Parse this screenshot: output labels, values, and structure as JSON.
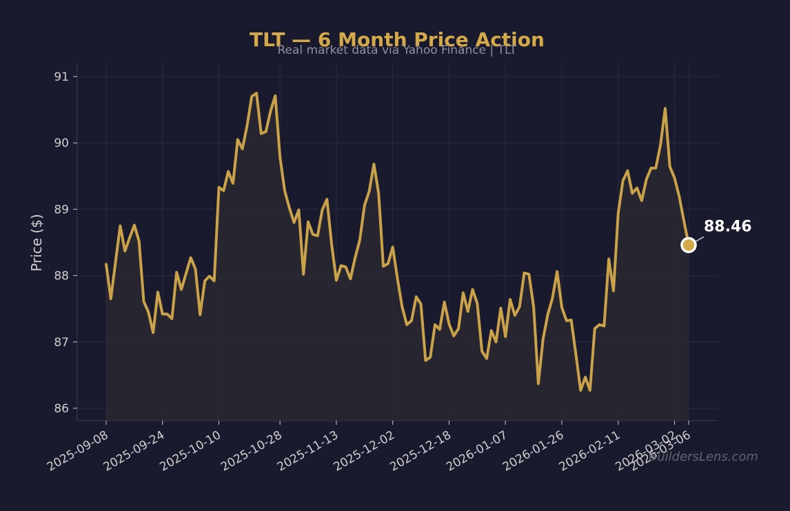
{
  "chart_data": {
    "type": "area",
    "title": "TLT — 6 Month Price Action",
    "subtitle": "Real market data via Yahoo Finance | TLT",
    "xlabel": "",
    "ylabel": "Price ($)",
    "ylim": [
      85.8,
      91.2
    ],
    "yticks": [
      86,
      87,
      88,
      89,
      90,
      91
    ],
    "xtick_labels": [
      "2025-09-08",
      "2025-09-24",
      "2025-10-10",
      "2025-10-28",
      "2025-11-13",
      "2025-12-02",
      "2025-12-18",
      "2026-01-07",
      "2026-01-26",
      "2026-02-11",
      "2026-03-02",
      "2026-03-06"
    ],
    "grid": true,
    "last_label": "88.46",
    "watermark": "BuildersLens.com",
    "series": [
      {
        "values": [
          88.17,
          87.65,
          88.21,
          88.75,
          88.37,
          88.57,
          88.76,
          88.52,
          87.61,
          87.45,
          87.14,
          87.75,
          87.42,
          87.42,
          87.35,
          88.05,
          87.79,
          88.03,
          88.27,
          88.1,
          87.41,
          87.92,
          87.99,
          87.92,
          89.33,
          89.28,
          89.57,
          89.39,
          90.05,
          89.91,
          90.26,
          90.7,
          90.75,
          90.14,
          90.17,
          90.48,
          90.71,
          89.79,
          89.28,
          89.02,
          88.8,
          88.99,
          88.02,
          88.81,
          88.62,
          88.6,
          88.99,
          89.15,
          88.47,
          87.93,
          88.15,
          88.13,
          87.95,
          88.27,
          88.54,
          89.06,
          89.27,
          89.68,
          89.24,
          88.14,
          88.18,
          88.43,
          87.96,
          87.53,
          87.26,
          87.32,
          87.68,
          87.57,
          86.72,
          86.77,
          87.26,
          87.19,
          87.6,
          87.27,
          87.09,
          87.2,
          87.74,
          87.46,
          87.79,
          87.58,
          86.86,
          86.75,
          87.17,
          87.0,
          87.51,
          87.08,
          87.64,
          87.4,
          87.53,
          88.04,
          88.02,
          87.53,
          86.37,
          87.04,
          87.41,
          87.66,
          88.06,
          87.52,
          87.32,
          87.33,
          86.81,
          86.27,
          86.47,
          86.27,
          87.2,
          87.26,
          87.24,
          88.25,
          87.77,
          88.94,
          89.43,
          89.58,
          89.24,
          89.32,
          89.13,
          89.45,
          89.62,
          89.62,
          89.97,
          90.52,
          89.64,
          89.47,
          89.19,
          88.82,
          88.46
        ],
        "color": "#c9a24a"
      }
    ],
    "colors": {
      "background": "#1a1a2e",
      "accent": "#d4a94a",
      "text": "#cfcfcf",
      "grid": "#2a2a40",
      "fill": "#2a2830"
    }
  }
}
